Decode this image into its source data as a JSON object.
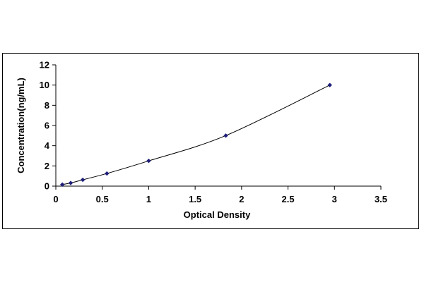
{
  "chart_data": {
    "type": "scatter",
    "title": "",
    "xlabel": "Optical Density",
    "ylabel": "Concentration(ng/mL)",
    "xlim": [
      0,
      3.5
    ],
    "ylim": [
      0,
      12
    ],
    "x_ticks": [
      "0",
      "0.5",
      "1",
      "1.5",
      "2",
      "2.5",
      "3",
      "3.5"
    ],
    "y_ticks": [
      "0",
      "2",
      "4",
      "6",
      "8",
      "10",
      "12"
    ],
    "grid": false,
    "legend": "none",
    "marker_color": "#1f1f7a",
    "series": [
      {
        "x": [
          0.07,
          0.16,
          0.29,
          0.55,
          1.0,
          1.83,
          2.95
        ],
        "y": [
          0.156,
          0.312,
          0.625,
          1.25,
          2.5,
          5.0,
          10.0
        ]
      }
    ],
    "fit_curve": true
  }
}
